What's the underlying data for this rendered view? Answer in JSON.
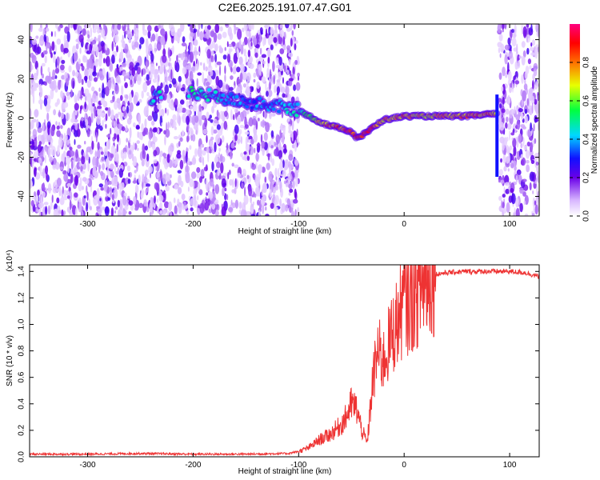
{
  "title": "C2E6.2025.191.07.47.G01",
  "chart_data": [
    {
      "type": "heatmap",
      "xlabel": "Height of straight line (km)",
      "ylabel": "Frequency (Hz)",
      "xlim": [
        -355,
        128
      ],
      "ylim": [
        -50,
        48
      ],
      "xticks": [
        -300,
        -200,
        -100,
        0,
        100
      ],
      "yticks": [
        -40,
        -20,
        0,
        20,
        40
      ],
      "colorbar": {
        "label": "Normalized spectral amplitude",
        "range": [
          0,
          1
        ],
        "ticks": [
          "0.0",
          "0.2",
          "0.4",
          "0.6",
          "0.8"
        ],
        "colormap": "rainbow (white-violet-blue-cyan-green-yellow-red-magenta)"
      },
      "noise_regions": [
        [
          -355,
          -100
        ],
        [
          90,
          128
        ]
      ],
      "signal_ridge": {
        "x": [
          -240,
          -200,
          -150,
          -120,
          -100,
          -90,
          -80,
          -70,
          -60,
          -50,
          -45,
          -40,
          -30,
          -20,
          -10,
          0,
          20,
          40,
          60,
          80,
          88
        ],
        "freq": [
          10,
          13,
          8,
          6,
          4,
          1,
          -2,
          -4,
          -5,
          -7,
          -10,
          -9,
          -5,
          -1,
          0,
          1,
          1,
          1,
          1,
          2,
          2
        ],
        "amplitude": [
          0.45,
          0.5,
          0.35,
          0.4,
          0.45,
          0.6,
          0.7,
          0.8,
          0.85,
          0.9,
          0.9,
          0.9,
          0.85,
          0.75,
          0.75,
          0.8,
          0.7,
          0.75,
          0.8,
          0.8,
          0.75
        ]
      },
      "vertical_streak": {
        "x": 88,
        "freq_range": [
          -30,
          12
        ]
      },
      "grid": false
    },
    {
      "type": "line",
      "xlabel": "Height of straight line (km)",
      "ylabel": "SNR (10 * v/v)",
      "y_scale_label": "(x10⁴)",
      "xlim": [
        -355,
        128
      ],
      "ylim": [
        0,
        1.45
      ],
      "xticks": [
        -300,
        -200,
        -100,
        0,
        100
      ],
      "yticks": [
        "0.0",
        "0.2",
        "0.4",
        "0.6",
        "0.8",
        "1.0",
        "1.2",
        "1.4"
      ],
      "color": "#ee3333",
      "series": [
        {
          "x": [
            -355,
            -300,
            -250,
            -200,
            -150,
            -110,
            -100,
            -90,
            -80,
            -70,
            -60,
            -55,
            -50,
            -45,
            -40,
            -35,
            -30,
            -25,
            -20,
            -15,
            -10,
            -5,
            0,
            5,
            10,
            15,
            20,
            25,
            30,
            40,
            60,
            80,
            100,
            115,
            128
          ],
          "values": [
            0.02,
            0.02,
            0.025,
            0.02,
            0.02,
            0.025,
            0.04,
            0.07,
            0.13,
            0.17,
            0.24,
            0.3,
            0.4,
            0.36,
            0.2,
            0.1,
            0.55,
            0.8,
            0.72,
            0.84,
            0.95,
            1.05,
            1.18,
            1.16,
            1.22,
            1.28,
            1.33,
            1.36,
            1.38,
            1.39,
            1.4,
            1.4,
            1.4,
            1.39,
            1.36
          ]
        }
      ],
      "grid": false
    }
  ]
}
